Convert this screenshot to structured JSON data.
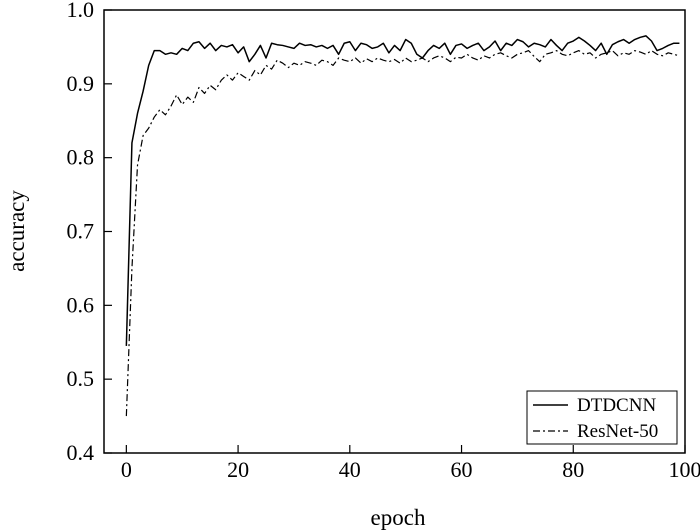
{
  "chart_data": {
    "type": "line",
    "title": "",
    "xlabel": "epoch",
    "ylabel": "accuracy",
    "xlim": [
      -4,
      100
    ],
    "ylim": [
      0.4,
      1.0
    ],
    "xticks": [
      0,
      20,
      40,
      60,
      80,
      100
    ],
    "yticks": [
      0.4,
      0.5,
      0.6,
      0.7,
      0.8,
      0.9,
      1.0
    ],
    "xtick_labels": [
      "0",
      "20",
      "40",
      "60",
      "80",
      "100"
    ],
    "ytick_labels": [
      "0.4",
      "0.5",
      "0.6",
      "0.7",
      "0.8",
      "0.9",
      "1.0"
    ],
    "grid": false,
    "legend_position": "bottom-right",
    "series": [
      {
        "name": "DTDCNN",
        "line_style": "solid",
        "color": "#000000",
        "x": [
          0,
          1,
          2,
          3,
          4,
          5,
          6,
          7,
          8,
          9,
          10,
          11,
          12,
          13,
          14,
          15,
          16,
          17,
          18,
          19,
          20,
          21,
          22,
          23,
          24,
          25,
          26,
          27,
          28,
          29,
          30,
          31,
          32,
          33,
          34,
          35,
          36,
          37,
          38,
          39,
          40,
          41,
          42,
          43,
          44,
          45,
          46,
          47,
          48,
          49,
          50,
          51,
          52,
          53,
          54,
          55,
          56,
          57,
          58,
          59,
          60,
          61,
          62,
          63,
          64,
          65,
          66,
          67,
          68,
          69,
          70,
          71,
          72,
          73,
          74,
          75,
          76,
          77,
          78,
          79,
          80,
          81,
          82,
          83,
          84,
          85,
          86,
          87,
          88,
          89,
          90,
          91,
          92,
          93,
          94,
          95,
          96,
          97,
          98,
          99
        ],
        "y": [
          0.545,
          0.82,
          0.86,
          0.89,
          0.925,
          0.945,
          0.945,
          0.94,
          0.942,
          0.94,
          0.948,
          0.945,
          0.955,
          0.957,
          0.948,
          0.955,
          0.945,
          0.952,
          0.95,
          0.953,
          0.942,
          0.95,
          0.93,
          0.94,
          0.952,
          0.935,
          0.955,
          0.953,
          0.952,
          0.95,
          0.948,
          0.955,
          0.952,
          0.953,
          0.95,
          0.952,
          0.948,
          0.952,
          0.94,
          0.955,
          0.957,
          0.945,
          0.955,
          0.953,
          0.948,
          0.95,
          0.955,
          0.942,
          0.952,
          0.945,
          0.96,
          0.955,
          0.94,
          0.935,
          0.945,
          0.952,
          0.948,
          0.955,
          0.94,
          0.952,
          0.954,
          0.948,
          0.952,
          0.955,
          0.945,
          0.95,
          0.958,
          0.945,
          0.955,
          0.952,
          0.96,
          0.957,
          0.95,
          0.955,
          0.953,
          0.95,
          0.96,
          0.952,
          0.945,
          0.955,
          0.958,
          0.963,
          0.958,
          0.952,
          0.945,
          0.955,
          0.94,
          0.953,
          0.957,
          0.96,
          0.955,
          0.96,
          0.963,
          0.965,
          0.958,
          0.945,
          0.948,
          0.952,
          0.955,
          0.955
        ]
      },
      {
        "name": "ResNet-50",
        "line_style": "dash-dot",
        "color": "#000000",
        "x": [
          0,
          1,
          2,
          3,
          4,
          5,
          6,
          7,
          8,
          9,
          10,
          11,
          12,
          13,
          14,
          15,
          16,
          17,
          18,
          19,
          20,
          21,
          22,
          23,
          24,
          25,
          26,
          27,
          28,
          29,
          30,
          31,
          32,
          33,
          34,
          35,
          36,
          37,
          38,
          39,
          40,
          41,
          42,
          43,
          44,
          45,
          46,
          47,
          48,
          49,
          50,
          51,
          52,
          53,
          54,
          55,
          56,
          57,
          58,
          59,
          60,
          61,
          62,
          63,
          64,
          65,
          66,
          67,
          68,
          69,
          70,
          71,
          72,
          73,
          74,
          75,
          76,
          77,
          78,
          79,
          80,
          81,
          82,
          83,
          84,
          85,
          86,
          87,
          88,
          89,
          90,
          91,
          92,
          93,
          94,
          95,
          96,
          97,
          98,
          99
        ],
        "y": [
          0.45,
          0.65,
          0.79,
          0.83,
          0.84,
          0.855,
          0.865,
          0.858,
          0.87,
          0.885,
          0.872,
          0.882,
          0.875,
          0.895,
          0.887,
          0.898,
          0.892,
          0.905,
          0.912,
          0.905,
          0.915,
          0.91,
          0.905,
          0.918,
          0.912,
          0.925,
          0.92,
          0.932,
          0.928,
          0.922,
          0.928,
          0.925,
          0.93,
          0.928,
          0.925,
          0.932,
          0.93,
          0.925,
          0.935,
          0.932,
          0.93,
          0.935,
          0.928,
          0.934,
          0.93,
          0.935,
          0.932,
          0.93,
          0.933,
          0.928,
          0.935,
          0.93,
          0.932,
          0.935,
          0.93,
          0.935,
          0.938,
          0.935,
          0.93,
          0.936,
          0.935,
          0.94,
          0.935,
          0.932,
          0.938,
          0.935,
          0.94,
          0.942,
          0.938,
          0.935,
          0.94,
          0.942,
          0.945,
          0.937,
          0.93,
          0.94,
          0.942,
          0.945,
          0.94,
          0.938,
          0.942,
          0.945,
          0.94,
          0.942,
          0.935,
          0.94,
          0.942,
          0.945,
          0.938,
          0.942,
          0.94,
          0.945,
          0.943,
          0.94,
          0.945,
          0.94,
          0.938,
          0.942,
          0.94,
          0.938
        ]
      }
    ]
  }
}
